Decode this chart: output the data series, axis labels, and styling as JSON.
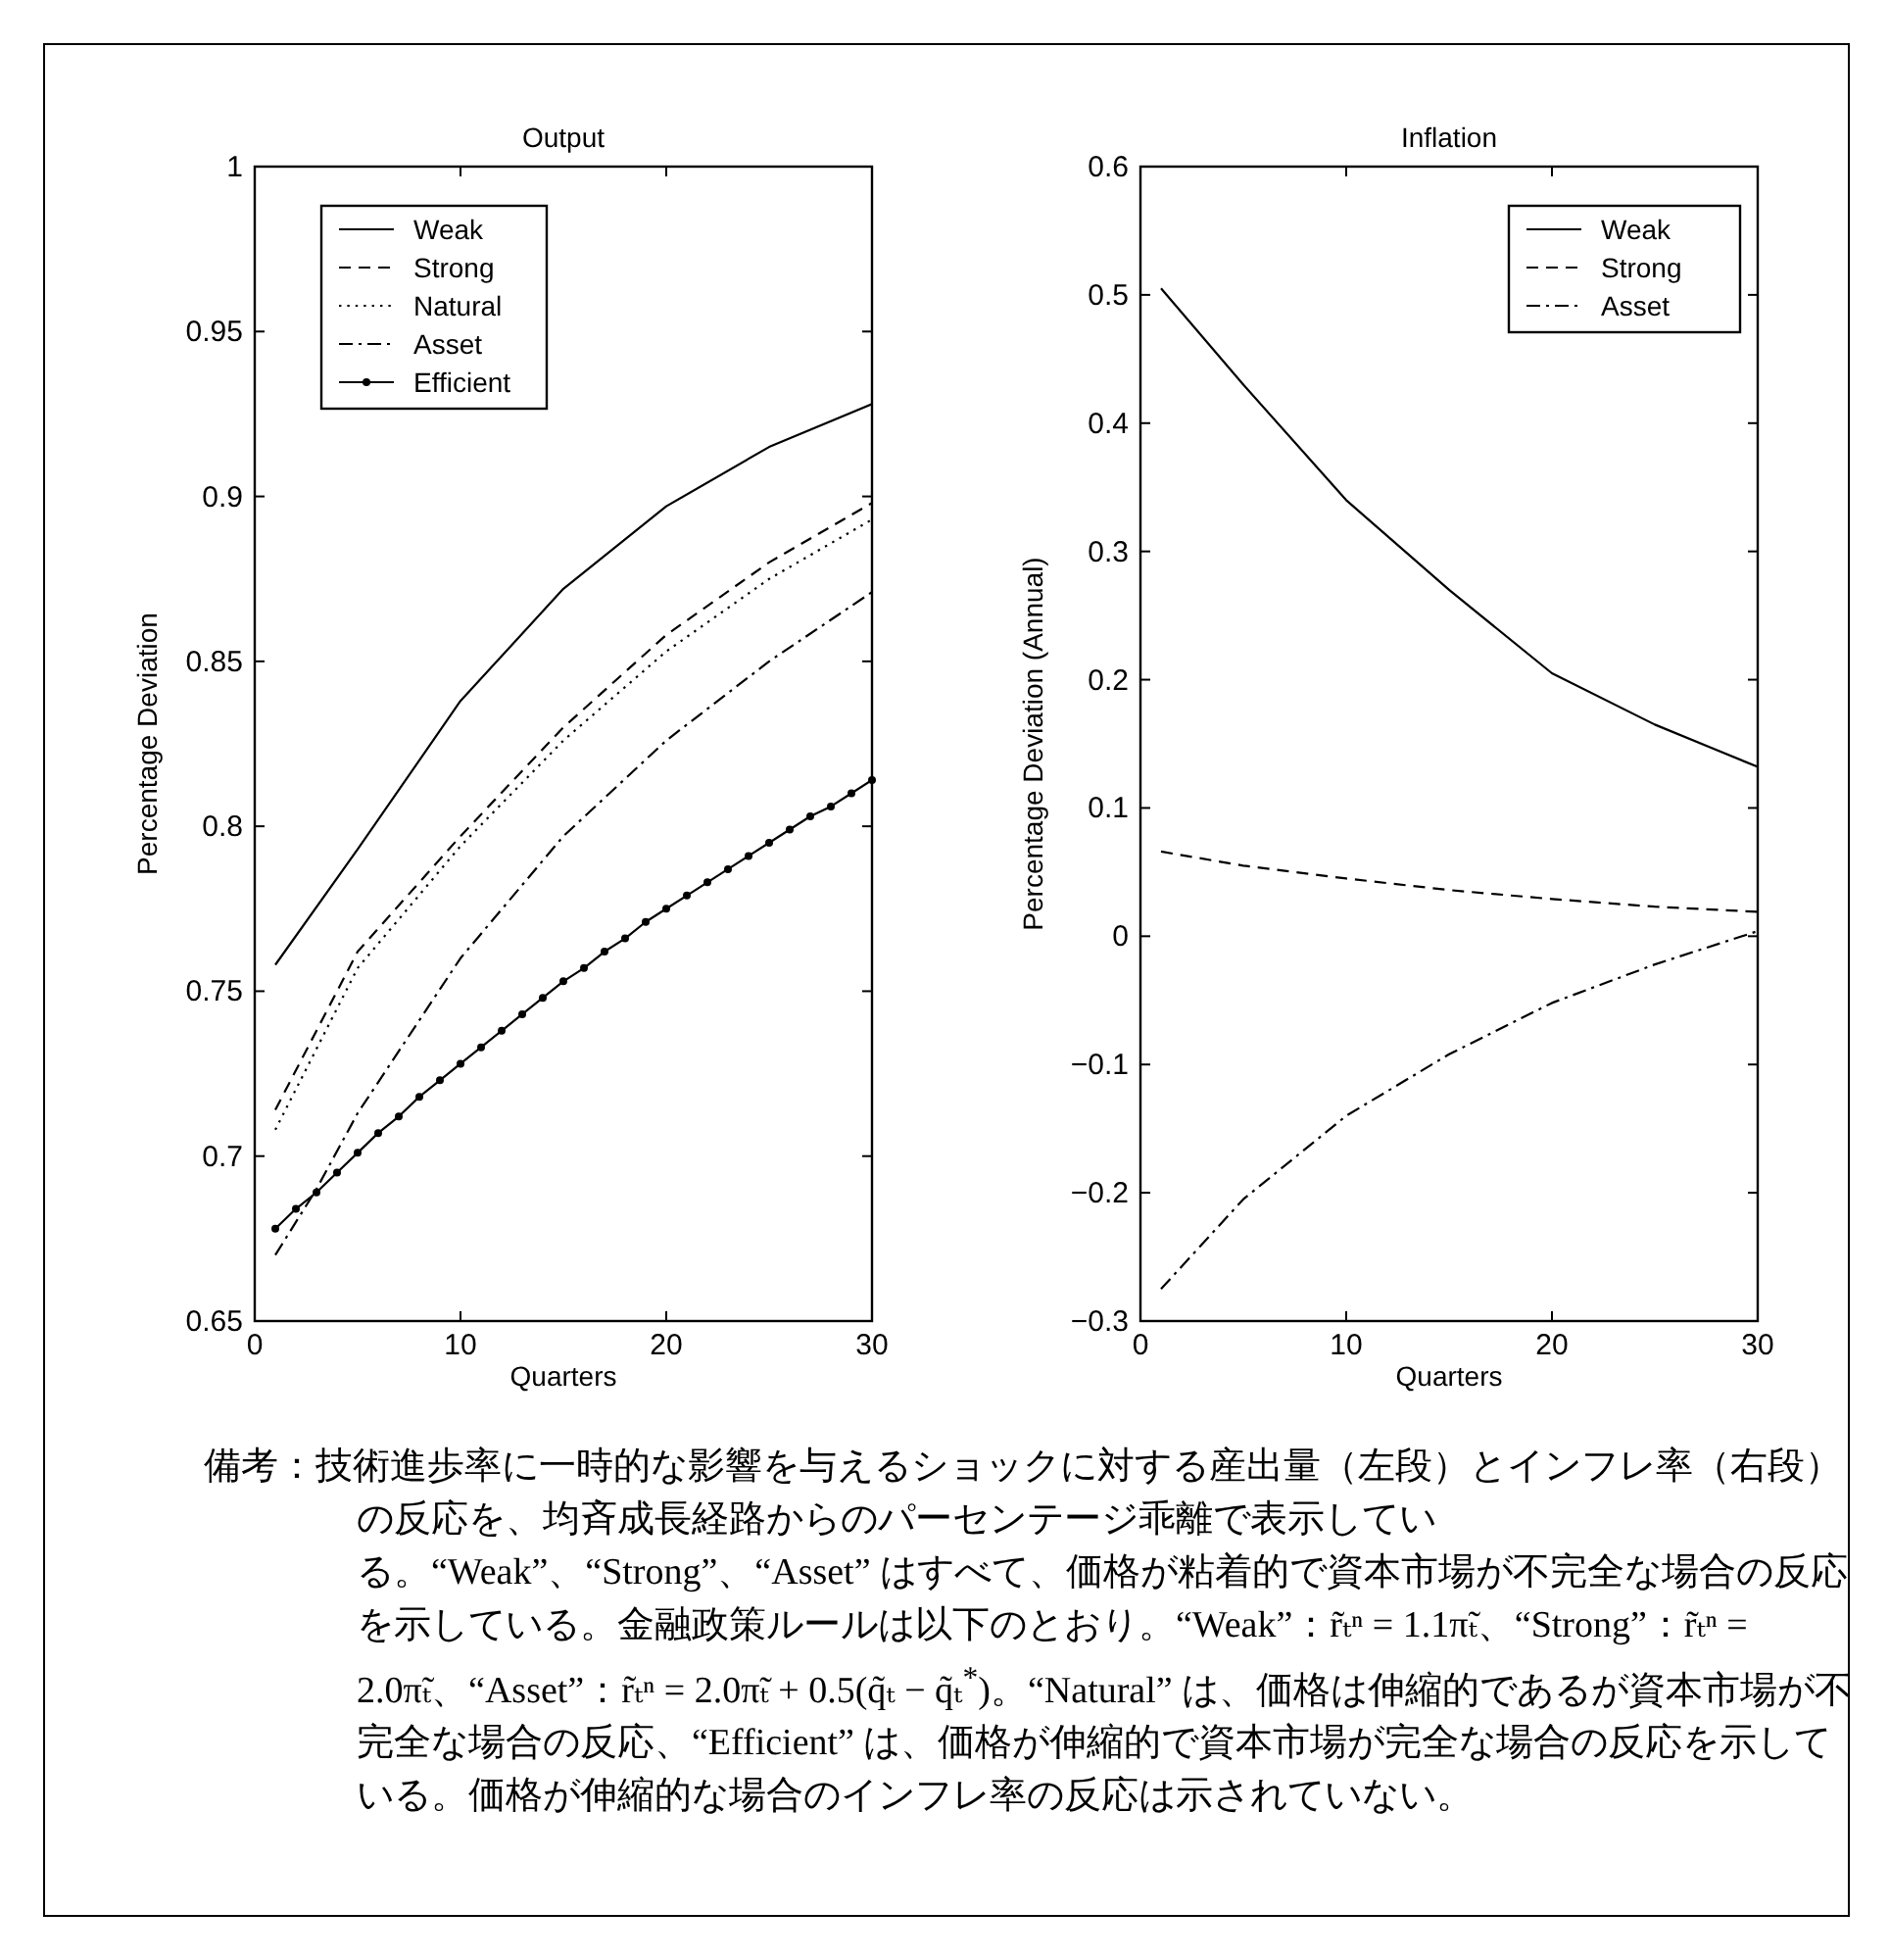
{
  "chart_data": [
    {
      "type": "line",
      "title": "Output",
      "xlabel": "Quarters",
      "ylabel": "Percentage Deviation",
      "xlim": [
        0,
        30
      ],
      "xticks": [
        0,
        10,
        20,
        30
      ],
      "ylim": [
        0.65,
        1
      ],
      "yticks": [
        0.65,
        0.7,
        0.75,
        0.8,
        0.85,
        0.9,
        0.95,
        1
      ],
      "legend": "top left",
      "grid": false,
      "series": [
        {
          "name": "Weak",
          "color": "#000000",
          "line_style": "solid",
          "marker": "none",
          "x": [
            1,
            5,
            10,
            15,
            20,
            25,
            30
          ],
          "values": [
            0.758,
            0.793,
            0.838,
            0.872,
            0.897,
            0.915,
            0.928
          ]
        },
        {
          "name": "Strong",
          "color": "#000000",
          "line_style": "dashed",
          "marker": "none",
          "x": [
            1,
            5,
            10,
            15,
            20,
            25,
            30
          ],
          "values": [
            0.714,
            0.762,
            0.797,
            0.83,
            0.858,
            0.88,
            0.898
          ]
        },
        {
          "name": "Natural",
          "color": "#000000",
          "line_style": "dotted",
          "marker": "none",
          "x": [
            1,
            5,
            10,
            15,
            20,
            25,
            30
          ],
          "values": [
            0.708,
            0.757,
            0.794,
            0.826,
            0.853,
            0.875,
            0.893
          ]
        },
        {
          "name": "Asset",
          "color": "#000000",
          "line_style": "dashdot",
          "marker": "none",
          "x": [
            1,
            3,
            5,
            10,
            15,
            20,
            25,
            30
          ],
          "values": [
            0.67,
            0.69,
            0.713,
            0.76,
            0.797,
            0.826,
            0.85,
            0.871
          ]
        },
        {
          "name": "Efficient",
          "color": "#000000",
          "line_style": "solid",
          "marker": "circle",
          "x": [
            1,
            2,
            3,
            4,
            5,
            6,
            7,
            8,
            9,
            10,
            11,
            12,
            13,
            14,
            15,
            16,
            17,
            18,
            19,
            20,
            21,
            22,
            23,
            24,
            25,
            26,
            27,
            28,
            29,
            30
          ],
          "values": [
            0.678,
            0.684,
            0.689,
            0.695,
            0.701,
            0.707,
            0.712,
            0.718,
            0.723,
            0.728,
            0.733,
            0.738,
            0.743,
            0.748,
            0.753,
            0.757,
            0.762,
            0.766,
            0.771,
            0.775,
            0.779,
            0.783,
            0.787,
            0.791,
            0.795,
            0.799,
            0.803,
            0.806,
            0.81,
            0.814
          ]
        }
      ],
      "annotations": [
        "備考：技術進歩率に一時的な影響を与えるショックに対する産出量（左段）とインフレ率（右段）の反応を、均斉成長経路からのパーセンテージ乖離で表示している。“Weak”、“Strong”、“Asset” はすべて、価格が粘着的で資本市場が不完全な場合の反応を示している。金融政策ルールは以下のとおり。“Weak”：r̃ₜⁿ = 1.1π̃ₜ、“Strong”：r̃ₜⁿ = 2.0π̃ₜ、“Asset”：r̃ₜⁿ = 2.0π̃ₜ + 0.5(q̃ₜ − q̃ₜ$^{*}$)。“Natural” は、価格は伸縮的であるが資本市場が不完全な場合の反応、“Efficient” は、価格が伸縮的で資本市場が完全な場合の反応を示している。価格が伸縮的な場合のインフレ率の反応は示されていない。"
      ]
    },
    {
      "type": "line",
      "title": "Inflation",
      "xlabel": "Quarters",
      "ylabel": "Percentage Deviation (Annual)",
      "xlim": [
        0,
        30
      ],
      "xticks": [
        0,
        10,
        20,
        30
      ],
      "ylim": [
        -0.3,
        0.6
      ],
      "yticks": [
        {
          "value": -0.3,
          "label": "−0.3"
        },
        {
          "value": -0.2,
          "label": "−0.2"
        },
        {
          "value": -0.1,
          "label": "−0.1"
        },
        0,
        0.1,
        0.2,
        0.3,
        0.4,
        0.5,
        0.6
      ],
      "legend": "top right",
      "grid": false,
      "series": [
        {
          "name": "Weak",
          "color": "#000000",
          "line_style": "solid",
          "marker": "none",
          "x": [
            1,
            5,
            10,
            15,
            20,
            25,
            30
          ],
          "values": [
            0.505,
            0.43,
            0.34,
            0.27,
            0.205,
            0.165,
            0.132
          ]
        },
        {
          "name": "Strong",
          "color": "#000000",
          "line_style": "dashed",
          "marker": "none",
          "x": [
            1,
            5,
            10,
            15,
            20,
            25,
            30
          ],
          "values": [
            0.066,
            0.055,
            0.045,
            0.036,
            0.029,
            0.023,
            0.019
          ]
        },
        {
          "name": "Asset",
          "color": "#000000",
          "line_style": "dashdot",
          "marker": "none",
          "x": [
            1,
            5,
            10,
            15,
            20,
            25,
            30
          ],
          "values": [
            -0.275,
            -0.205,
            -0.14,
            -0.092,
            -0.052,
            -0.022,
            0.004
          ]
        }
      ]
    }
  ]
}
